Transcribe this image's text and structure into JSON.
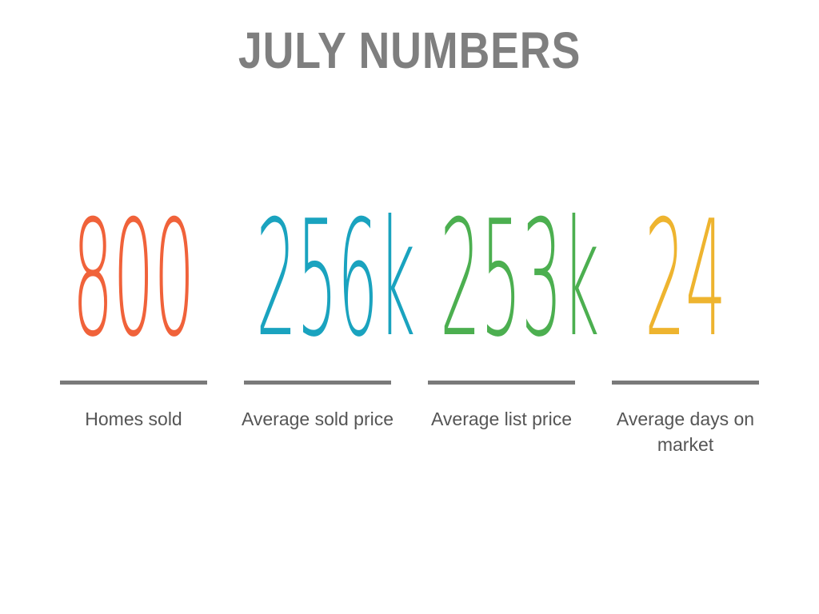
{
  "title": "JULY NUMBERS",
  "stats": [
    {
      "value": "800",
      "label": "Homes sold",
      "color": "#F0623A"
    },
    {
      "value": "256k",
      "label": "Average sold price",
      "color": "#1AA3BF"
    },
    {
      "value": "253k",
      "label": "Average list price",
      "color": "#4CAF50"
    },
    {
      "value": "24",
      "label": "Average days on market",
      "color": "#EEB42F"
    }
  ]
}
